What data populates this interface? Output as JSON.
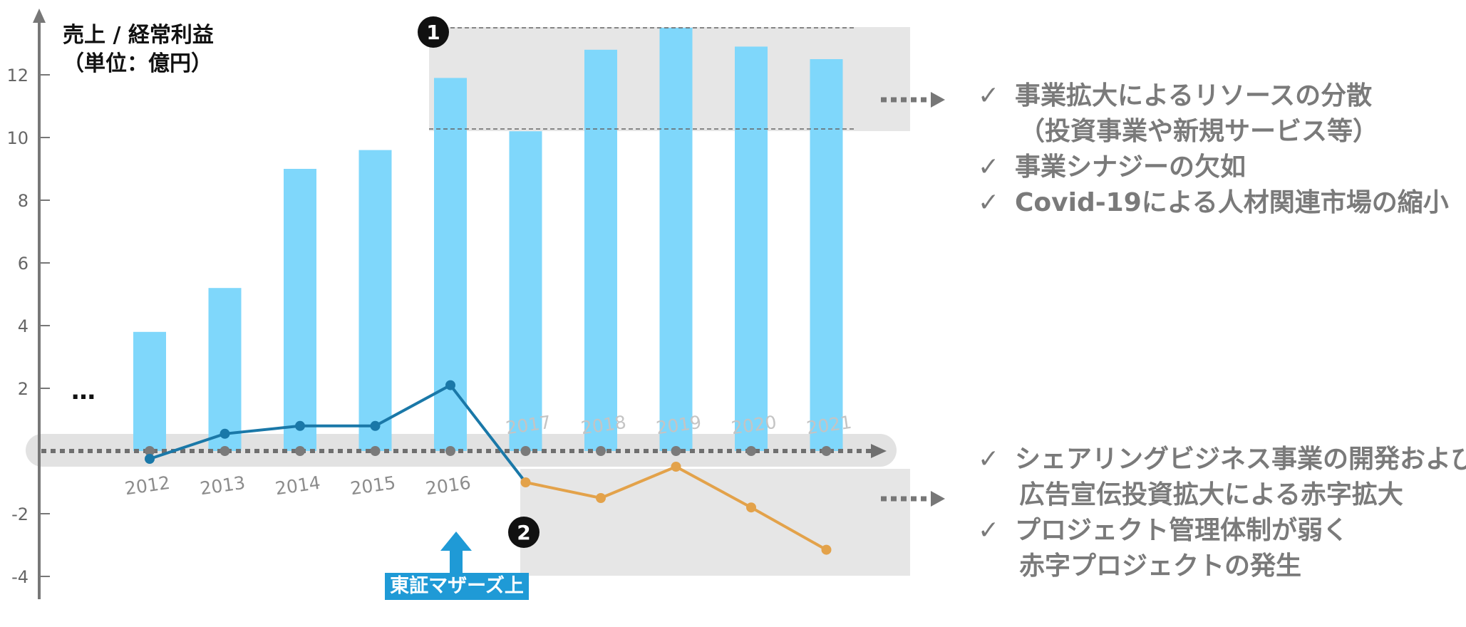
{
  "chart_data": {
    "type": "bar",
    "categories": [
      "2012",
      "2013",
      "2014",
      "2015",
      "2016",
      "2017",
      "2018",
      "2019",
      "2020",
      "2021"
    ],
    "series": [
      {
        "kind": "bar",
        "values": [
          3.8,
          5.2,
          9.0,
          9.6,
          11.9,
          10.2,
          12.8,
          13.5,
          12.9,
          12.5
        ],
        "color": "#7fd7fb"
      },
      {
        "kind": "line",
        "values": [
          -0.25,
          0.55,
          0.8,
          0.8,
          2.1,
          -1.0,
          -1.5,
          -0.5,
          -1.8,
          -3.15
        ],
        "color_profit": "#1a78a8",
        "color_loss": "#e3a24a"
      }
    ],
    "ylim": [
      -4.4,
      14.0
    ],
    "yticks": [
      "12",
      "10",
      "8",
      "6",
      "4",
      "2",
      "-2",
      "-4"
    ],
    "ytick_values": [
      12,
      10,
      8,
      6,
      4,
      2,
      -2,
      -4
    ],
    "ylabel": [
      "売上 / 経常利益",
      "（単位：億円）"
    ],
    "ellipsis": "…",
    "markers": [
      "1",
      "2"
    ],
    "listing_label": "東証マザーズ上場"
  },
  "notes_top": [
    {
      "check": "✓",
      "text": "事業拡大によるリソースの分散",
      "sub": "（投資事業や新規サービス等）"
    },
    {
      "check": "✓",
      "text": "事業シナジーの欠如"
    },
    {
      "check": "✓",
      "text": "Covid-19による人材関連市場の縮小"
    }
  ],
  "notes_bottom": [
    {
      "check": "✓",
      "text": "シェアリングビジネス事業の開発および",
      "sub": "広告宣伝投資拡大による赤字拡大"
    },
    {
      "check": "✓",
      "text": "プロジェクト管理体制が弱く",
      "sub": "赤字プロジェクトの発生"
    }
  ]
}
